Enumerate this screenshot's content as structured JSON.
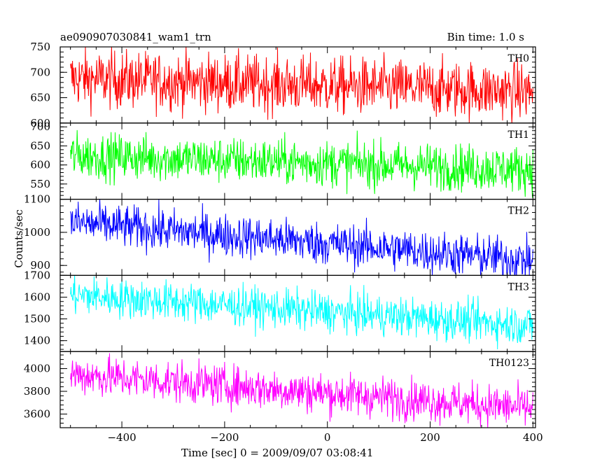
{
  "header": {
    "title": "ae090907030841_wam1_trn",
    "bin_time": "Bin time: 1.0 s"
  },
  "chart_data": {
    "type": "line",
    "title": "ae090907030841_wam1_trn",
    "subtitle": "Bin time: 1.0 s",
    "xlabel": "Time [sec] 0 = 2009/09/07 03:08:41",
    "ylabel": "Counts/sec",
    "xlim": [
      -520,
      405
    ],
    "x_ticks": [
      -400,
      -200,
      0,
      200,
      400
    ],
    "x_tick_labels": [
      "−400",
      "−200",
      "0",
      "200",
      "400"
    ],
    "x_range": [
      -500,
      400
    ],
    "grid": false,
    "panels": [
      {
        "name": "TH0",
        "color": "#ff0000",
        "ylim": [
          600,
          750
        ],
        "y_ticks": [
          600,
          650,
          700,
          750
        ],
        "trend_start": 688,
        "trend_end": 662,
        "noise": 28
      },
      {
        "name": "TH1",
        "color": "#00ff00",
        "ylim": [
          510,
          710
        ],
        "y_ticks": [
          550,
          600,
          650,
          700
        ],
        "trend_start": 625,
        "trend_end": 588,
        "noise": 30
      },
      {
        "name": "TH2",
        "color": "#0000ff",
        "ylim": [
          870,
          1100
        ],
        "y_ticks": [
          900,
          1000,
          1100
        ],
        "trend_start": 1030,
        "trend_end": 915,
        "noise": 32
      },
      {
        "name": "TH3",
        "color": "#00ffff",
        "ylim": [
          1350,
          1700
        ],
        "y_ticks": [
          1400,
          1500,
          1600,
          1700
        ],
        "trend_start": 1610,
        "trend_end": 1470,
        "noise": 45
      },
      {
        "name": "TH0123",
        "color": "#ff00ff",
        "ylim": [
          3480,
          4150
        ],
        "y_ticks": [
          3600,
          3800,
          4000
        ],
        "trend_start": 3950,
        "trend_end": 3650,
        "noise": 90
      }
    ]
  }
}
